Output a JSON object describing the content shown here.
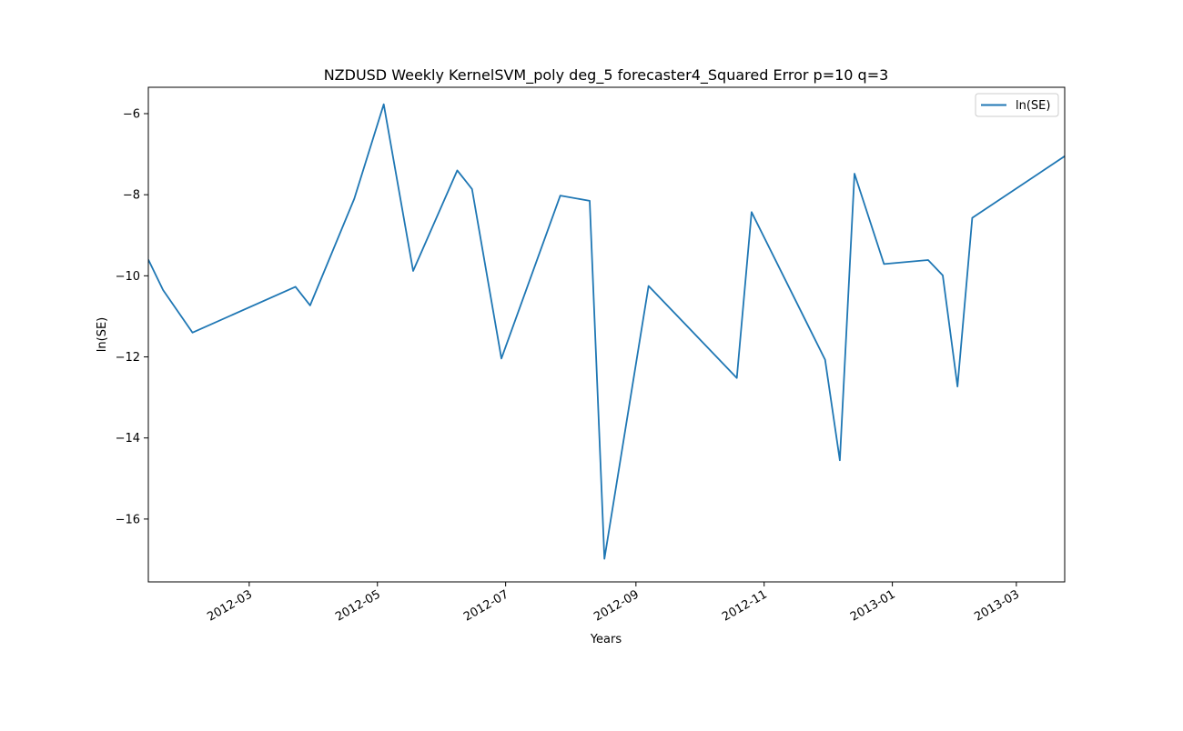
{
  "chart_data": {
    "type": "line",
    "title": "NZDUSD Weekly KernelSVM_poly deg_5 forecaster4_Squared Error p=10 q=3",
    "xlabel": "Years",
    "ylabel": "ln(SE)",
    "xlim": [
      "2012-01-13",
      "2013-03-24"
    ],
    "ylim": [
      -17.55,
      -5.35
    ],
    "x_ticks": [
      "2012-03-01",
      "2012-05-01",
      "2012-07-01",
      "2012-09-01",
      "2012-11-01",
      "2013-01-01",
      "2013-03-01"
    ],
    "x_tick_labels": [
      "2012-03",
      "2012-05",
      "2012-07",
      "2012-09",
      "2012-11",
      "2013-01",
      "2013-03"
    ],
    "y_ticks": [
      -6,
      -8,
      -10,
      -12,
      -14,
      -16
    ],
    "y_tick_labels": [
      "−6",
      "−8",
      "−10",
      "−12",
      "−14",
      "−16"
    ],
    "grid": false,
    "legend_position": "top-right",
    "series": [
      {
        "name": "ln(SE)",
        "color": "#1f77b4",
        "x": [
          "2012-01-13",
          "2012-01-20",
          "2012-02-03",
          "2012-03-23",
          "2012-03-30",
          "2012-04-20",
          "2012-05-04",
          "2012-05-18",
          "2012-06-08",
          "2012-06-15",
          "2012-06-29",
          "2012-07-27",
          "2012-08-10",
          "2012-08-17",
          "2012-09-07",
          "2012-10-19",
          "2012-10-26",
          "2012-11-30",
          "2012-12-07",
          "2012-12-14",
          "2012-12-28",
          "2013-01-18",
          "2013-01-25",
          "2013-02-01",
          "2013-02-08",
          "2013-03-24"
        ],
        "values": [
          -9.6,
          -10.35,
          -11.4,
          -10.27,
          -10.73,
          -8.1,
          -5.77,
          -9.88,
          -7.4,
          -7.86,
          -12.04,
          -8.02,
          -8.15,
          -16.98,
          -10.25,
          -12.52,
          -8.43,
          -12.07,
          -14.55,
          -7.48,
          -9.71,
          -9.61,
          -9.99,
          -12.73,
          -8.57,
          -7.05
        ]
      }
    ]
  }
}
